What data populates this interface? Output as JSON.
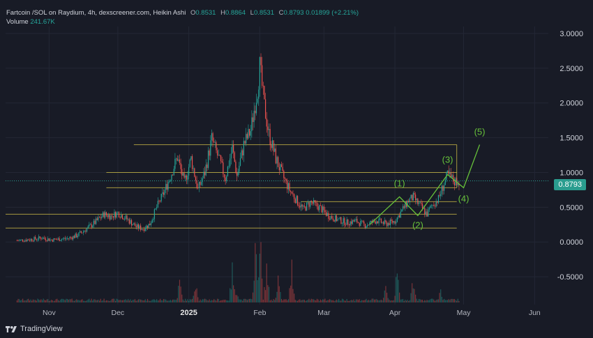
{
  "header": {
    "symbol": "Fartcoin /SOL on Raydium, 4h, dexscreener.com, Heikin Ashi",
    "o_key": "O",
    "o_val": "0.8531",
    "h_key": "H",
    "h_val": "0.8864",
    "l_key": "L",
    "l_val": "0.8531",
    "c_key": "C",
    "c_val": "0.8793",
    "change": "0.01899 (+2.21%)",
    "volume_label": "Volume",
    "volume_val": "241.67K"
  },
  "price_tag": "0.8793",
  "branding": {
    "name": "TradingView",
    "icon": "tradingview-logo-icon"
  },
  "colors": {
    "background": "#181b26",
    "up": "#26a69a",
    "down": "#ef5350",
    "level_line": "#c9b845",
    "wave": "#67c23a",
    "price_tag": "#2a9d8f"
  },
  "chart_data": {
    "type": "candlestick",
    "yticks": [
      "3.0000",
      "2.5000",
      "2.0000",
      "1.5000",
      "1.0000",
      "0.5000",
      "0.0000",
      "-0.5000"
    ],
    "ylim": [
      -0.9,
      3.1
    ],
    "xticks": [
      {
        "label": "Nov",
        "date": "2024-11-01"
      },
      {
        "label": "Dec",
        "date": "2024-12-01"
      },
      {
        "label": "2025",
        "date": "2025-01-01",
        "bold": true
      },
      {
        "label": "Feb",
        "date": "2025-02-01"
      },
      {
        "label": "Mar",
        "date": "2025-03-01"
      },
      {
        "label": "Apr",
        "date": "2025-04-01"
      },
      {
        "label": "May",
        "date": "2025-05-01"
      },
      {
        "label": "Jun",
        "date": "2025-06-01"
      }
    ],
    "xlim": [
      "2024-10-13",
      "2025-06-07"
    ],
    "last_price": 0.8793,
    "price_path": [
      [
        "2024-10-18",
        0.02
      ],
      [
        "2024-10-25",
        0.04
      ],
      [
        "2024-10-29",
        0.06
      ],
      [
        "2024-11-02",
        0.03
      ],
      [
        "2024-11-09",
        0.05
      ],
      [
        "2024-11-13",
        0.09
      ],
      [
        "2024-11-17",
        0.18
      ],
      [
        "2024-11-21",
        0.28
      ],
      [
        "2024-11-25",
        0.4
      ],
      [
        "2024-11-28",
        0.37
      ],
      [
        "2024-12-01",
        0.42
      ],
      [
        "2024-12-05",
        0.33
      ],
      [
        "2024-12-09",
        0.22
      ],
      [
        "2024-12-12",
        0.19
      ],
      [
        "2024-12-15",
        0.26
      ],
      [
        "2024-12-18",
        0.5
      ],
      [
        "2024-12-21",
        0.7
      ],
      [
        "2024-12-24",
        0.95
      ],
      [
        "2024-12-27",
        1.22
      ],
      [
        "2024-12-30",
        0.85
      ],
      [
        "2025-01-02",
        1.2
      ],
      [
        "2025-01-05",
        0.75
      ],
      [
        "2025-01-08",
        1.0
      ],
      [
        "2025-01-11",
        1.48
      ],
      [
        "2025-01-14",
        1.2
      ],
      [
        "2025-01-17",
        0.92
      ],
      [
        "2025-01-20",
        1.35
      ],
      [
        "2025-01-22",
        0.95
      ],
      [
        "2025-01-25",
        1.4
      ],
      [
        "2025-01-28",
        1.6
      ],
      [
        "2025-01-31",
        2.2
      ],
      [
        "2025-02-01",
        2.52
      ],
      [
        "2025-02-03",
        1.95
      ],
      [
        "2025-02-05",
        1.55
      ],
      [
        "2025-02-08",
        1.2
      ],
      [
        "2025-02-11",
        0.95
      ],
      [
        "2025-02-14",
        0.75
      ],
      [
        "2025-02-17",
        0.6
      ],
      [
        "2025-02-20",
        0.47
      ],
      [
        "2025-02-23",
        0.57
      ],
      [
        "2025-02-27",
        0.5
      ],
      [
        "2025-03-03",
        0.38
      ],
      [
        "2025-03-07",
        0.32
      ],
      [
        "2025-03-11",
        0.28
      ],
      [
        "2025-03-15",
        0.3
      ],
      [
        "2025-03-19",
        0.24
      ],
      [
        "2025-03-24",
        0.31
      ],
      [
        "2025-03-28",
        0.26
      ],
      [
        "2025-04-01",
        0.3
      ],
      [
        "2025-04-04",
        0.45
      ],
      [
        "2025-04-07",
        0.6
      ],
      [
        "2025-04-09",
        0.64
      ],
      [
        "2025-04-12",
        0.52
      ],
      [
        "2025-04-15",
        0.4
      ],
      [
        "2025-04-17",
        0.52
      ],
      [
        "2025-04-20",
        0.62
      ],
      [
        "2025-04-22",
        0.8
      ],
      [
        "2025-04-24",
        0.96
      ],
      [
        "2025-04-27",
        0.87
      ],
      [
        "2025-04-29",
        0.88
      ]
    ],
    "volume_spikes": [
      [
        "2024-12-28",
        0.3
      ],
      [
        "2025-01-04",
        0.35
      ],
      [
        "2025-01-20",
        0.45
      ],
      [
        "2025-01-22",
        0.2
      ],
      [
        "2025-01-30",
        0.8
      ],
      [
        "2025-02-01",
        1.0
      ],
      [
        "2025-02-04",
        0.5
      ],
      [
        "2025-02-09",
        0.35
      ],
      [
        "2025-02-15",
        0.5
      ],
      [
        "2025-03-28",
        0.25
      ],
      [
        "2025-04-02",
        0.4
      ],
      [
        "2025-04-09",
        0.35
      ],
      [
        "2025-04-21",
        0.2
      ]
    ],
    "horizontal_levels": [
      {
        "price": 1.4,
        "from": "2024-12-08",
        "to": "2025-04-28"
      },
      {
        "price": 1.0,
        "from": "2024-11-26",
        "to": "2025-04-28"
      },
      {
        "price": 0.78,
        "from": "2024-11-26",
        "to": "2025-04-28"
      },
      {
        "price": 0.58,
        "from": "2025-02-19",
        "to": "2025-04-28"
      },
      {
        "price": 0.4,
        "from": "2024-10-13",
        "to": "2025-04-28"
      },
      {
        "price": 0.2,
        "from": "2024-10-13",
        "to": "2025-04-28"
      }
    ],
    "dashed_level": {
      "price": 0.8793
    },
    "vertical_line": {
      "date": "2025-04-28",
      "from": 0.78,
      "to": 1.4
    },
    "elliott_wave": {
      "points": [
        [
          "2025-03-21",
          0.25
        ],
        [
          "2025-04-03",
          0.65
        ],
        [
          "2025-04-11",
          0.38
        ],
        [
          "2025-04-24",
          0.97
        ],
        [
          "2025-05-01",
          0.78
        ],
        [
          "2025-05-08",
          1.4
        ]
      ],
      "labels": [
        {
          "text": "(1)",
          "date": "2025-04-03",
          "price": 0.8
        },
        {
          "text": "(2)",
          "date": "2025-04-11",
          "price": 0.2
        },
        {
          "text": "(3)",
          "date": "2025-04-24",
          "price": 1.14
        },
        {
          "text": "(4)",
          "date": "2025-05-01",
          "price": 0.58
        },
        {
          "text": "(5)",
          "date": "2025-05-08",
          "price": 1.54
        }
      ]
    }
  }
}
